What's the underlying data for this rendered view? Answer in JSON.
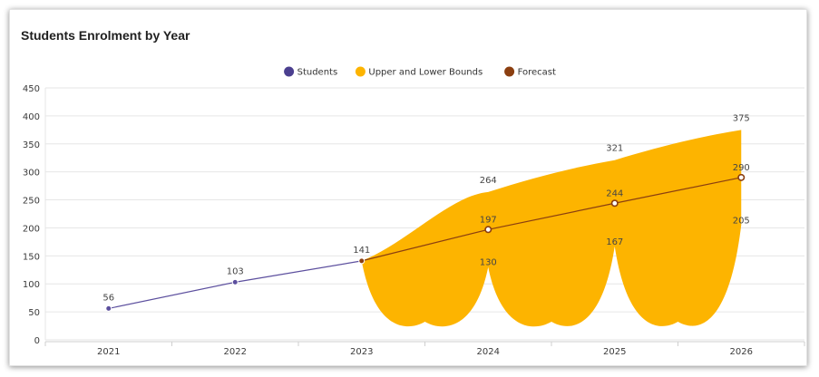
{
  "chart_data": {
    "type": "area",
    "title": "Students Enrolment by Year",
    "xlabel": "",
    "ylabel": "",
    "categories": [
      "2021",
      "2022",
      "2023",
      "2024",
      "2025",
      "2026"
    ],
    "ylim": [
      0,
      450
    ],
    "yticks": [
      0,
      50,
      100,
      150,
      200,
      250,
      300,
      350,
      400,
      450
    ],
    "grid": true,
    "legend_position": "top-center",
    "legend": [
      {
        "key": "students",
        "label": "Students",
        "color": "#4b3f8f"
      },
      {
        "key": "bounds",
        "label": "Upper and Lower Bounds",
        "color": "#fdb400"
      },
      {
        "key": "forecast",
        "label": "Forecast",
        "color": "#8b3f10"
      }
    ],
    "series": [
      {
        "name": "Students",
        "color": "#5c4f9e",
        "x": [
          "2021",
          "2022",
          "2023"
        ],
        "values": [
          56,
          103,
          141
        ]
      },
      {
        "name": "Forecast",
        "color": "#8b3f10",
        "x": [
          "2023",
          "2024",
          "2025",
          "2026"
        ],
        "values": [
          141,
          197,
          244,
          290
        ]
      },
      {
        "name": "Upper and Lower Bounds",
        "color": "#fdb400",
        "x": [
          "2023",
          "2024",
          "2025",
          "2026"
        ],
        "upper": [
          141,
          264,
          321,
          375
        ],
        "lower": [
          141,
          130,
          167,
          205
        ]
      }
    ]
  }
}
